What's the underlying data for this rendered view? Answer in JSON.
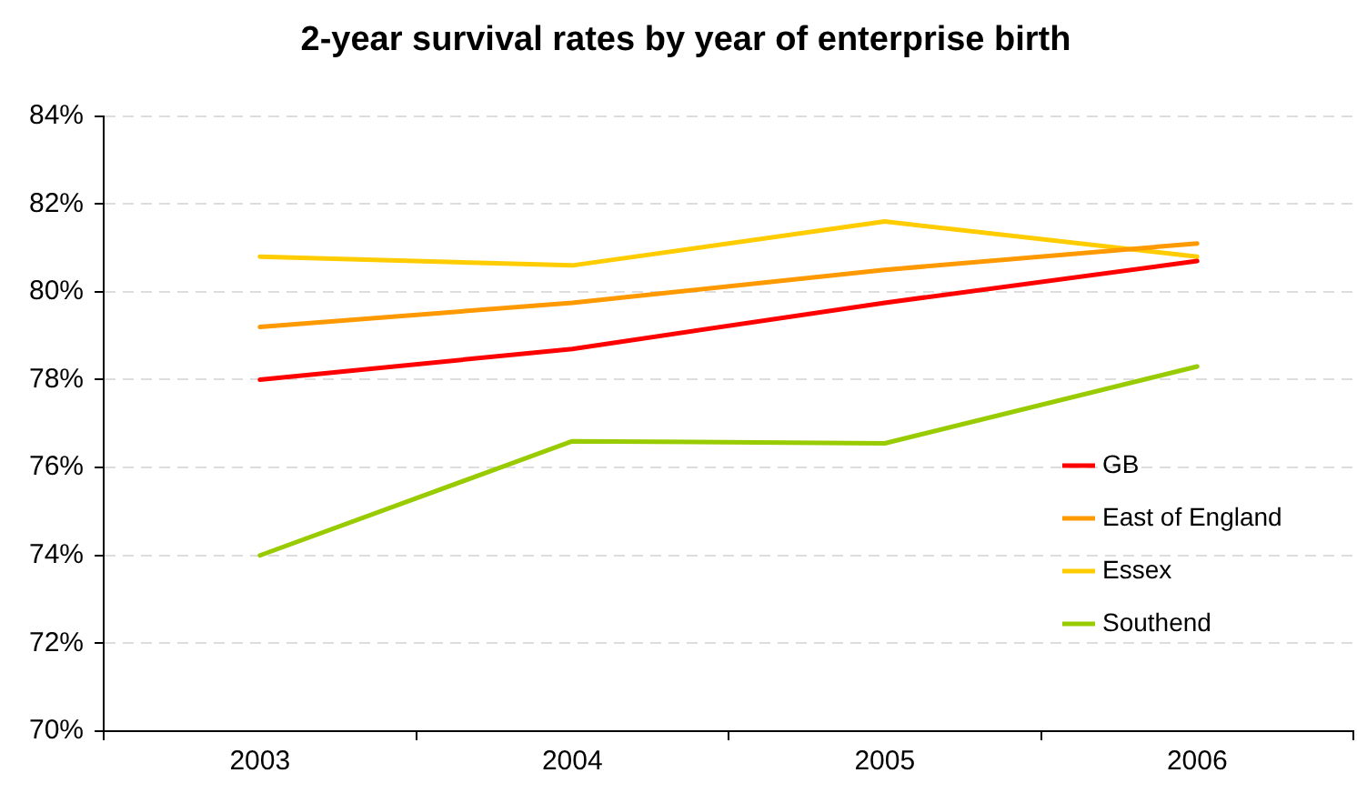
{
  "chart_data": {
    "type": "line",
    "title": "2-year survival rates by year of enterprise birth",
    "categories": [
      "2003",
      "2004",
      "2005",
      "2006"
    ],
    "series": [
      {
        "name": "GB",
        "color": "#ff0000",
        "values": [
          78.0,
          78.7,
          79.75,
          80.7
        ]
      },
      {
        "name": "East of England",
        "color": "#ff9900",
        "values": [
          79.2,
          79.75,
          80.5,
          81.1
        ]
      },
      {
        "name": "Essex",
        "color": "#ffcc00",
        "values": [
          80.8,
          80.6,
          81.6,
          80.8
        ]
      },
      {
        "name": "Southend",
        "color": "#99cc00",
        "values": [
          74.0,
          76.6,
          76.55,
          78.3
        ]
      }
    ],
    "ylim": [
      70,
      84
    ],
    "yticks": [
      {
        "value": 70,
        "label": "70%"
      },
      {
        "value": 72,
        "label": "72%"
      },
      {
        "value": 74,
        "label": "74%"
      },
      {
        "value": 76,
        "label": "76%"
      },
      {
        "value": 78,
        "label": "78%"
      },
      {
        "value": 80,
        "label": "80%"
      },
      {
        "value": 82,
        "label": "82%"
      },
      {
        "value": 84,
        "label": "84%"
      }
    ],
    "grid": "y",
    "legend": "bottom right",
    "marker": "none",
    "line_style": "solid"
  }
}
